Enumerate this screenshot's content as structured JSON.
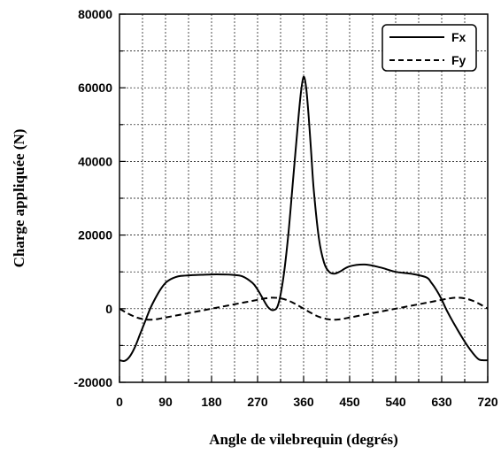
{
  "chart_data": {
    "type": "line",
    "title": "",
    "xlabel": "Angle de vilebrequin (degrés)",
    "ylabel": "Charge appliquée (N)",
    "xlim": [
      0,
      720
    ],
    "ylim": [
      -20000,
      80000
    ],
    "xticks": [
      0,
      90,
      180,
      270,
      360,
      450,
      540,
      630,
      720
    ],
    "xtick_labels": [
      "0",
      "90",
      "180",
      "270",
      "360",
      "450",
      "540",
      "630",
      "720"
    ],
    "yticks": [
      -20000,
      0,
      20000,
      40000,
      60000,
      80000
    ],
    "ytick_labels": [
      "-20000",
      "0",
      "20000",
      "40000",
      "60000",
      "80000"
    ],
    "grid": true,
    "legend_position": "top-right",
    "series": [
      {
        "name": "Fx",
        "style": "solid",
        "color": "#000000",
        "x": [
          0,
          10,
          20,
          30,
          40,
          50,
          60,
          70,
          80,
          90,
          100,
          110,
          120,
          140,
          160,
          180,
          200,
          220,
          240,
          260,
          270,
          280,
          290,
          300,
          310,
          320,
          330,
          340,
          350,
          355,
          360,
          365,
          370,
          375,
          380,
          390,
          400,
          410,
          420,
          430,
          450,
          480,
          510,
          540,
          570,
          600,
          610,
          620,
          630,
          640,
          660,
          680,
          700,
          710,
          720
        ],
        "y": [
          -14000,
          -14200,
          -13000,
          -10500,
          -7000,
          -3500,
          0,
          2800,
          5200,
          7000,
          8000,
          8600,
          8900,
          9100,
          9200,
          9300,
          9300,
          9200,
          8800,
          7000,
          5200,
          2800,
          500,
          -400,
          1000,
          8000,
          20000,
          36000,
          52000,
          59000,
          63000,
          60000,
          52000,
          42000,
          32000,
          19000,
          12500,
          10000,
          9500,
          10000,
          11500,
          12000,
          11200,
          10000,
          9500,
          8500,
          7000,
          5000,
          2500,
          -500,
          -5500,
          -10000,
          -13500,
          -14000,
          -14000
        ]
      },
      {
        "name": "Fy",
        "style": "dashed",
        "color": "#000000",
        "x": [
          0,
          15,
          30,
          45,
          60,
          75,
          90,
          120,
          150,
          180,
          210,
          240,
          270,
          285,
          300,
          315,
          330,
          345,
          360,
          375,
          390,
          405,
          420,
          435,
          450,
          480,
          510,
          540,
          570,
          600,
          630,
          645,
          660,
          675,
          690,
          705,
          720
        ],
        "y": [
          0,
          -1200,
          -2200,
          -2800,
          -3000,
          -2800,
          -2400,
          -1600,
          -800,
          0,
          800,
          1600,
          2400,
          2800,
          3000,
          2800,
          2200,
          1200,
          0,
          -1200,
          -2200,
          -2800,
          -3000,
          -2800,
          -2400,
          -1600,
          -800,
          0,
          800,
          1600,
          2400,
          2800,
          3000,
          2800,
          2200,
          1200,
          0
        ]
      }
    ]
  }
}
